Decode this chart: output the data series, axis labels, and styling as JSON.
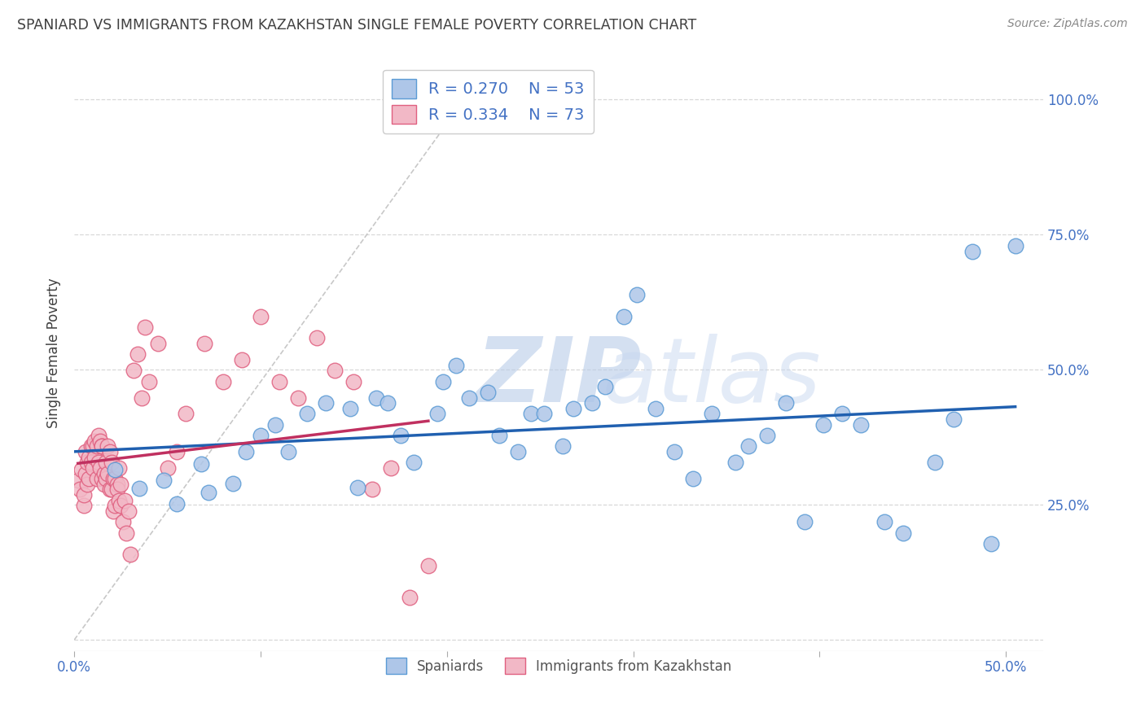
{
  "title": "SPANIARD VS IMMIGRANTS FROM KAZAKHSTAN SINGLE FEMALE POVERTY CORRELATION CHART",
  "source": "Source: ZipAtlas.com",
  "xlabel_spaniard": "Spaniards",
  "xlabel_kazakhstan": "Immigrants from Kazakhstan",
  "ylabel": "Single Female Poverty",
  "watermark_zip": "ZIP",
  "watermark_atlas": "atlas",
  "legend": {
    "blue_r": "R = 0.270",
    "blue_n": "N = 53",
    "pink_r": "R = 0.334",
    "pink_n": "N = 73"
  },
  "xlim": [
    0.0,
    0.52
  ],
  "ylim": [
    -0.02,
    1.08
  ],
  "blue_scatter_x": [
    0.022,
    0.035,
    0.048,
    0.055,
    0.068,
    0.072,
    0.085,
    0.092,
    0.1,
    0.108,
    0.115,
    0.125,
    0.135,
    0.148,
    0.152,
    0.162,
    0.168,
    0.175,
    0.182,
    0.195,
    0.198,
    0.205,
    0.212,
    0.222,
    0.228,
    0.238,
    0.245,
    0.252,
    0.262,
    0.268,
    0.278,
    0.285,
    0.295,
    0.302,
    0.312,
    0.322,
    0.332,
    0.342,
    0.355,
    0.362,
    0.372,
    0.382,
    0.392,
    0.402,
    0.412,
    0.422,
    0.435,
    0.445,
    0.462,
    0.472,
    0.482,
    0.492,
    0.505
  ],
  "blue_scatter_y": [
    0.315,
    0.28,
    0.295,
    0.252,
    0.325,
    0.272,
    0.29,
    0.348,
    0.378,
    0.398,
    0.348,
    0.418,
    0.438,
    0.428,
    0.282,
    0.448,
    0.438,
    0.378,
    0.328,
    0.418,
    0.478,
    0.508,
    0.448,
    0.458,
    0.378,
    0.348,
    0.418,
    0.418,
    0.358,
    0.428,
    0.438,
    0.468,
    0.598,
    0.638,
    0.428,
    0.348,
    0.298,
    0.418,
    0.328,
    0.358,
    0.378,
    0.438,
    0.218,
    0.398,
    0.418,
    0.398,
    0.218,
    0.198,
    0.328,
    0.408,
    0.718,
    0.178,
    0.728
  ],
  "pink_scatter_x": [
    0.002,
    0.003,
    0.004,
    0.005,
    0.005,
    0.006,
    0.006,
    0.007,
    0.007,
    0.008,
    0.008,
    0.009,
    0.009,
    0.01,
    0.01,
    0.011,
    0.011,
    0.012,
    0.012,
    0.013,
    0.013,
    0.014,
    0.014,
    0.015,
    0.015,
    0.015,
    0.016,
    0.016,
    0.017,
    0.017,
    0.018,
    0.018,
    0.019,
    0.019,
    0.02,
    0.02,
    0.021,
    0.021,
    0.022,
    0.022,
    0.023,
    0.023,
    0.024,
    0.024,
    0.025,
    0.025,
    0.026,
    0.027,
    0.028,
    0.029,
    0.03,
    0.032,
    0.034,
    0.036,
    0.038,
    0.04,
    0.045,
    0.05,
    0.055,
    0.06,
    0.07,
    0.08,
    0.09,
    0.1,
    0.11,
    0.12,
    0.13,
    0.14,
    0.15,
    0.16,
    0.17,
    0.18,
    0.19
  ],
  "pink_scatter_y": [
    0.295,
    0.278,
    0.315,
    0.248,
    0.268,
    0.308,
    0.348,
    0.328,
    0.288,
    0.338,
    0.298,
    0.358,
    0.328,
    0.318,
    0.358,
    0.338,
    0.368,
    0.298,
    0.358,
    0.328,
    0.378,
    0.368,
    0.318,
    0.298,
    0.358,
    0.358,
    0.308,
    0.288,
    0.298,
    0.328,
    0.358,
    0.308,
    0.278,
    0.348,
    0.278,
    0.328,
    0.298,
    0.238,
    0.298,
    0.248,
    0.288,
    0.278,
    0.318,
    0.258,
    0.288,
    0.248,
    0.218,
    0.258,
    0.198,
    0.238,
    0.158,
    0.498,
    0.528,
    0.448,
    0.578,
    0.478,
    0.548,
    0.318,
    0.348,
    0.418,
    0.548,
    0.478,
    0.518,
    0.598,
    0.478,
    0.448,
    0.558,
    0.498,
    0.478,
    0.278,
    0.318,
    0.078,
    0.138
  ],
  "blue_color": "#aec6e8",
  "blue_edge_color": "#5b9bd5",
  "pink_color": "#f2b8c6",
  "pink_edge_color": "#e06080",
  "blue_line_color": "#2060b0",
  "pink_line_color": "#c03060",
  "diag_color": "#c8c8c8",
  "grid_color": "#d8d8d8",
  "background_color": "#ffffff",
  "title_color": "#404040",
  "axis_label_color": "#4472c4",
  "right_tick_color": "#4472c4",
  "watermark_color_zip": "#b8cce8",
  "watermark_color_atlas": "#c8d8f0"
}
